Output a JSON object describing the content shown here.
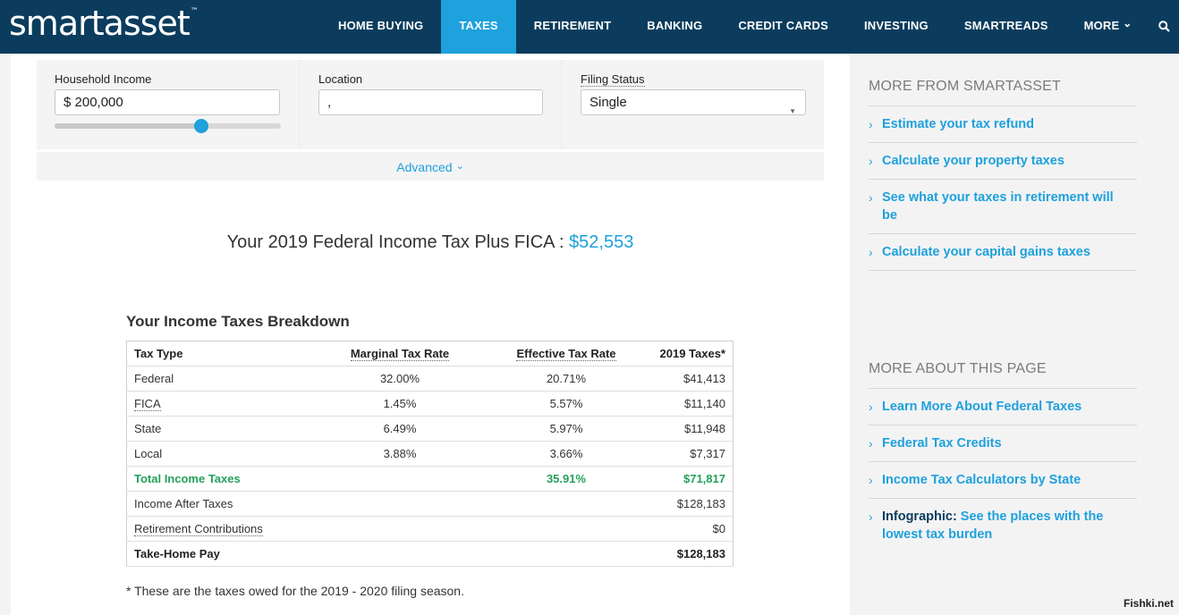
{
  "brand": {
    "logo_text": "smartasset",
    "trademark": "™"
  },
  "nav": {
    "items": [
      "HOME BUYING",
      "TAXES",
      "RETIREMENT",
      "BANKING",
      "CREDIT CARDS",
      "INVESTING",
      "SMARTREADS",
      "MORE"
    ],
    "more_chevron": "⌄",
    "active_index": 1,
    "search_icon": "search-icon"
  },
  "inputs": {
    "income_label": "Household Income",
    "income_value": "$ 200,000",
    "income_slider_fraction": 0.65,
    "location_label": "Location",
    "location_value": ",",
    "filing_label": "Filing Status",
    "filing_value": "Single",
    "advanced_label": "Advanced",
    "advanced_chevron": "⌄"
  },
  "headline": {
    "text": "Your 2019 Federal Income Tax Plus FICA : ",
    "amount": "$52,553"
  },
  "breakdown": {
    "title": "Your Income Taxes Breakdown",
    "columns": [
      "Tax Type",
      "Marginal Tax Rate",
      "Effective Tax Rate",
      "2019 Taxes*"
    ],
    "rows": [
      {
        "type": "Federal",
        "marginal": "32.00%",
        "effective": "20.71%",
        "taxes": "$41,413"
      },
      {
        "type": "FICA",
        "marginal": "1.45%",
        "effective": "5.57%",
        "taxes": "$11,140"
      },
      {
        "type": "State",
        "marginal": "6.49%",
        "effective": "5.97%",
        "taxes": "$11,948"
      },
      {
        "type": "Local",
        "marginal": "3.88%",
        "effective": "3.66%",
        "taxes": "$7,317"
      }
    ],
    "total": {
      "type": "Total Income Taxes",
      "effective": "35.91%",
      "taxes": "$71,817"
    },
    "after_taxes": {
      "label": "Income After Taxes",
      "value": "$128,183"
    },
    "retirement": {
      "label": "Retirement Contributions",
      "value": "$0"
    },
    "take_home": {
      "label": "Take-Home Pay",
      "value": "$128,183"
    },
    "footnote": "* These are the taxes owed for the 2019 - 2020 filing season."
  },
  "sidebar": {
    "more_from_title": "MORE FROM SMARTASSET",
    "more_from_links": [
      "Estimate your tax refund",
      "Calculate your property taxes",
      "See what your taxes in retirement will be",
      "Calculate your capital gains taxes"
    ],
    "about_title": "MORE ABOUT THIS PAGE",
    "about_links": [
      "Learn More About Federal Taxes",
      "Federal Tax Credits",
      "Income Tax Calculators by State"
    ],
    "infographic_strong": "Infographic:",
    "infographic_rest": " See the places with the lowest tax burden",
    "chevron": "›"
  },
  "watermark": "Fishki.net",
  "colors": {
    "navy": "#0b3c5d",
    "accent": "#1ea1dc",
    "green": "#25a05a"
  }
}
